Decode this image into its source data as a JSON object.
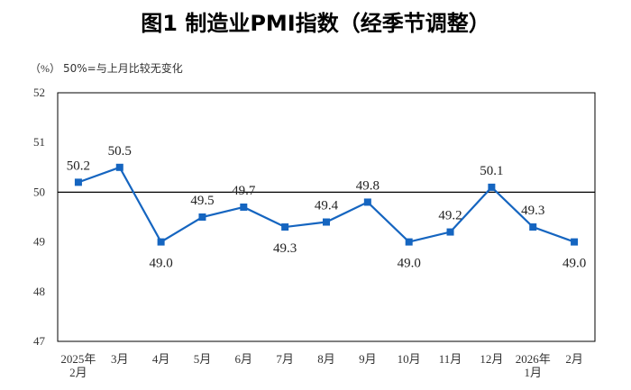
{
  "chart_data": {
    "type": "line",
    "title": "图1  制造业PMI指数（经季节调整）",
    "ylabel": "（%）",
    "note": "50%=与上月比较无变化",
    "categories": [
      [
        "2025年",
        "2月"
      ],
      [
        "3月"
      ],
      [
        "4月"
      ],
      [
        "5月"
      ],
      [
        "6月"
      ],
      [
        "7月"
      ],
      [
        "8月"
      ],
      [
        "9月"
      ],
      [
        "10月"
      ],
      [
        "11月"
      ],
      [
        "12月"
      ],
      [
        "2026年",
        "1月"
      ],
      [
        "2月"
      ]
    ],
    "series": [
      {
        "values": [
          50.2,
          50.5,
          49.0,
          49.5,
          49.7,
          49.3,
          49.4,
          49.8,
          49.0,
          49.2,
          50.1,
          49.3,
          49.0
        ]
      }
    ],
    "data_labels": [
      "50.2",
      "50.5",
      "49.0",
      "49.5",
      "49.7",
      "49.3",
      "49.4",
      "49.8",
      "49.0",
      "49.2",
      "50.1",
      "49.3",
      "49.0"
    ],
    "yticks": [
      "47",
      "48",
      "49",
      "50",
      "51",
      "52"
    ],
    "ylim": [
      47,
      52
    ],
    "reference_line": 50,
    "grid": false,
    "line_color": "#1565c0"
  }
}
